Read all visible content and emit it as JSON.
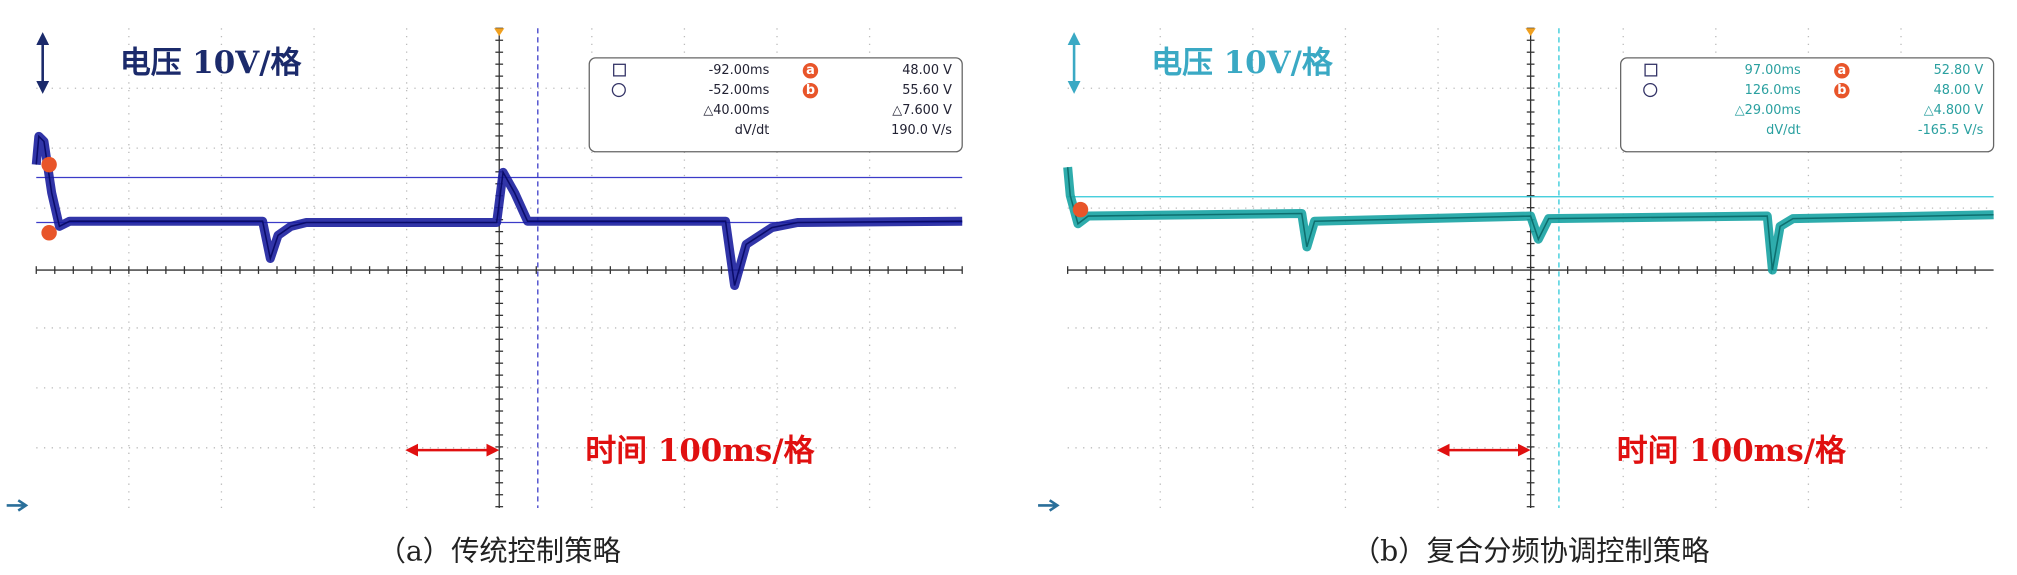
{
  "panels": [
    {
      "volt_label": "电压 10V/格",
      "time_label": "时间 100ms/格",
      "caption": "（a）传统控制策略",
      "readout": [
        [
          "-92.00ms",
          "a",
          "48.00 V"
        ],
        [
          "-52.00ms",
          "b",
          "55.60 V"
        ],
        [
          "△40.00ms",
          "",
          "△7.600 V"
        ],
        [
          "dV/dt",
          "",
          "190.0 V/s"
        ]
      ]
    },
    {
      "volt_label": "电压 10V/格",
      "time_label": "时间 100ms/格",
      "caption": "（b）复合分频协调控制策略",
      "readout": [
        [
          "97.00ms",
          "a",
          "52.80 V"
        ],
        [
          "126.0ms",
          "b",
          "48.00 V"
        ],
        [
          "△29.00ms",
          "",
          "△4.800 V"
        ],
        [
          "dV/dt",
          "",
          "-165.5 V/s"
        ]
      ]
    }
  ]
}
